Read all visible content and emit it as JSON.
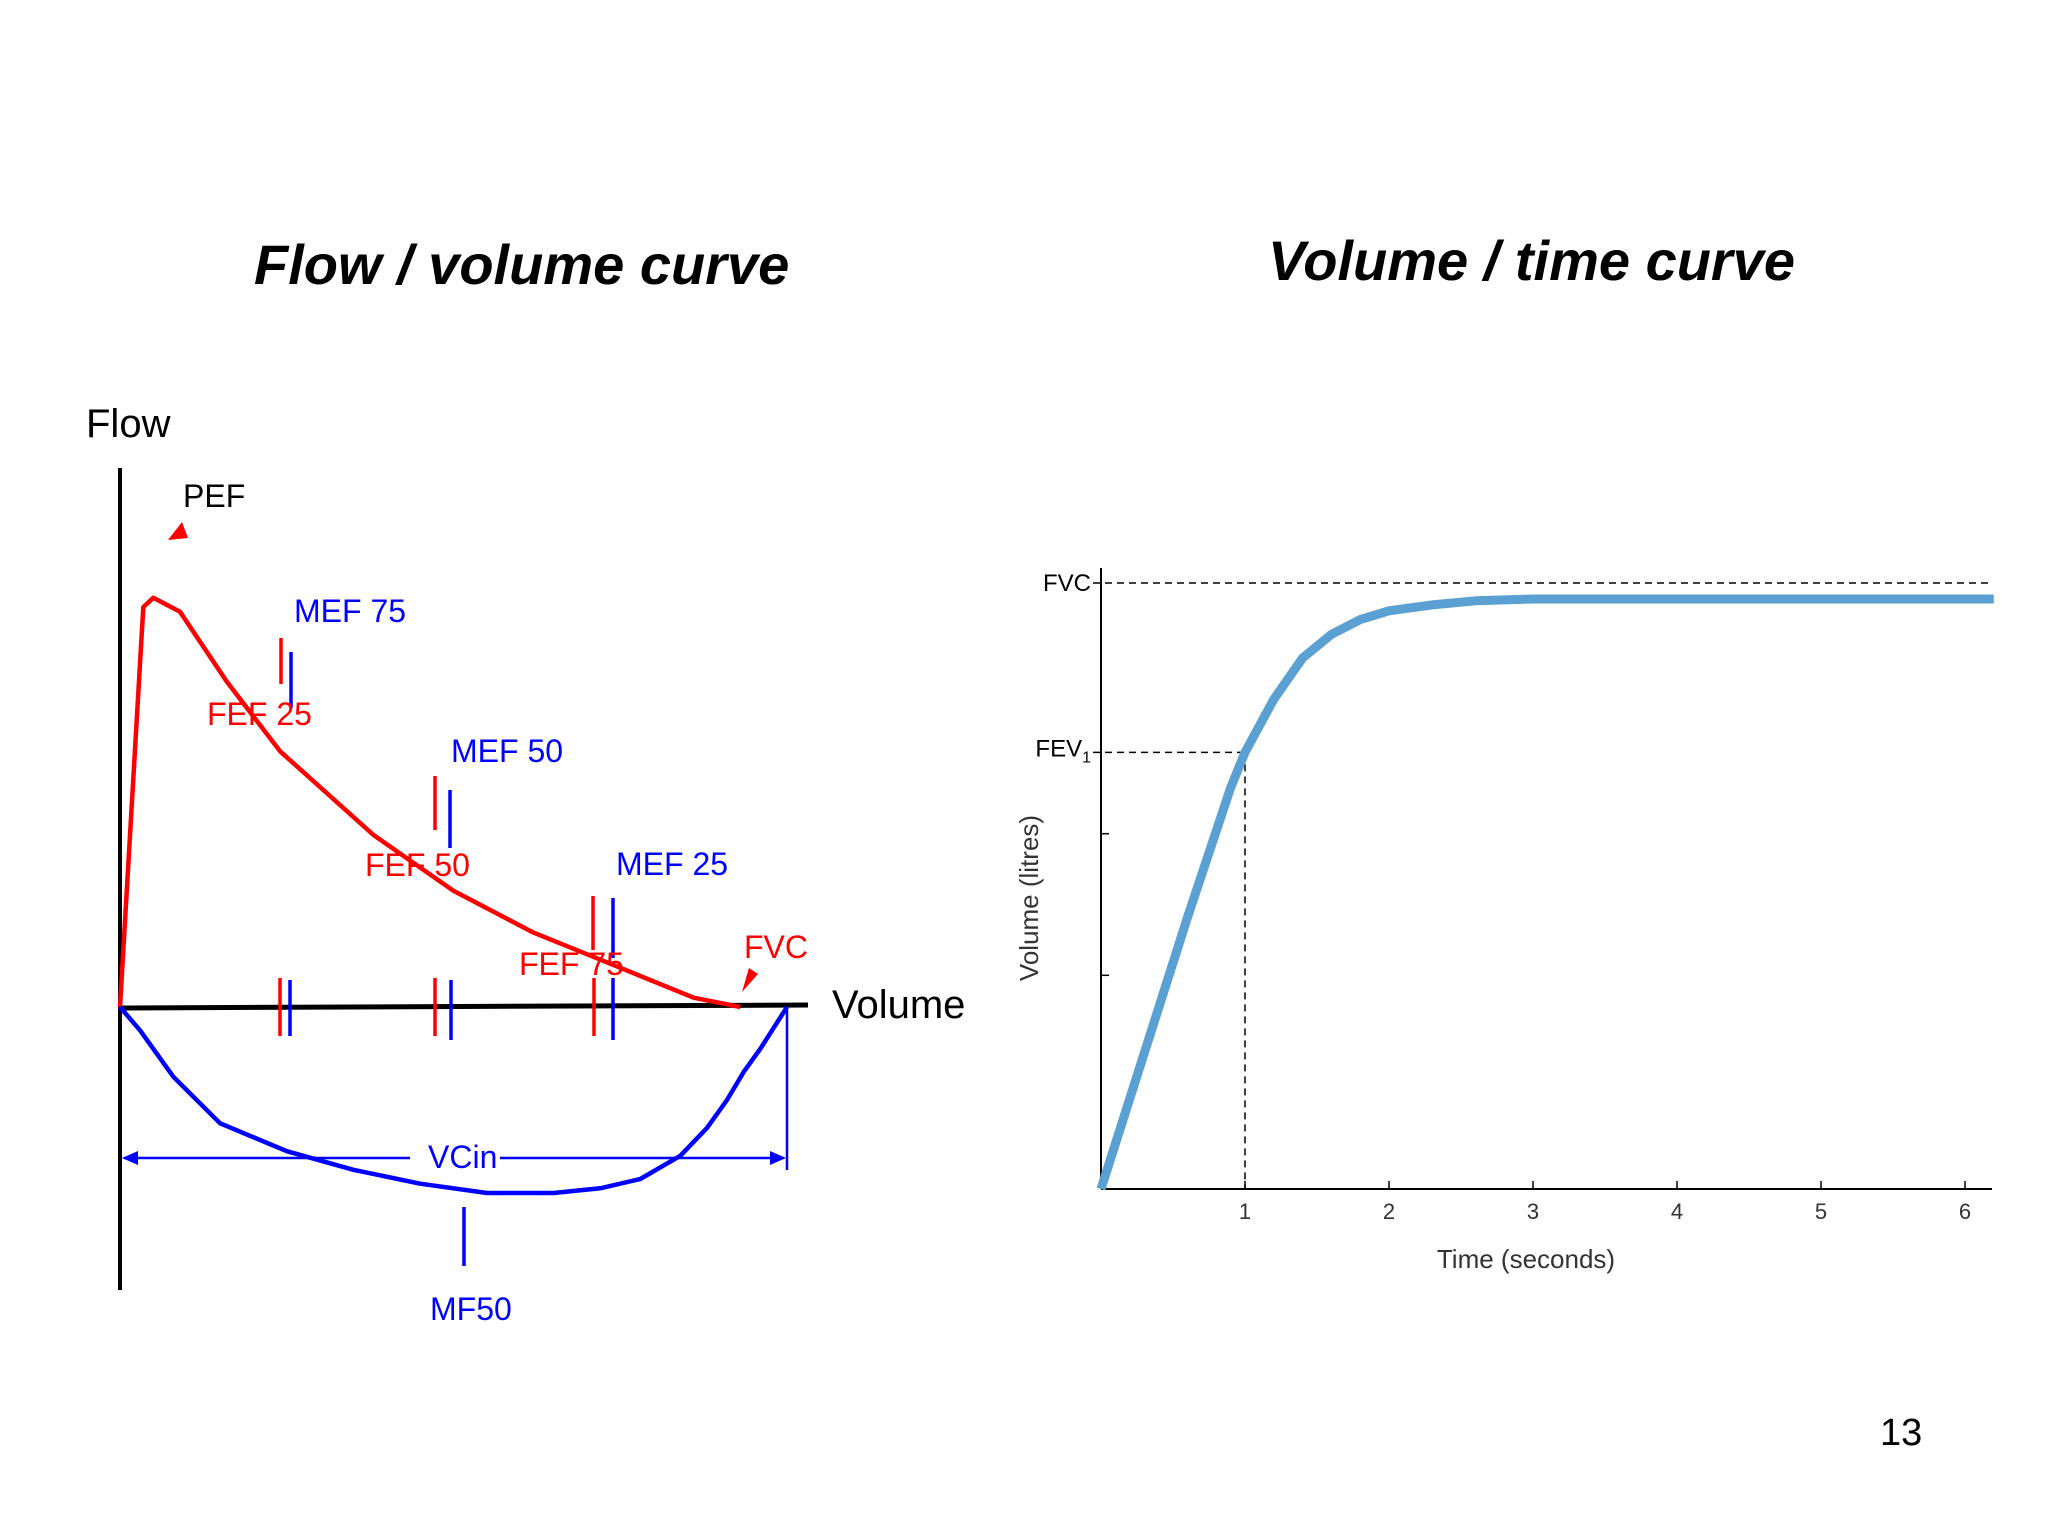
{
  "slide": {
    "left_title": "Flow / volume curve",
    "right_title": "Volume / time curve",
    "page_number": "13"
  },
  "colors": {
    "expiratory": "#ff0000",
    "inspiratory": "#0000ff",
    "volume_time_line": "#5aa0d2",
    "axis": "#000000"
  },
  "chart_data": [
    {
      "type": "line",
      "title": "Flow / volume curve",
      "xlabel": "Volume",
      "ylabel": "Flow",
      "grid": false,
      "legend": "none",
      "series": [
        {
          "name": "",
          "color": "#ff0000",
          "x": [
            0,
            0.035,
            0.05,
            0.09,
            0.16,
            0.24,
            0.38,
            0.5,
            0.62,
            0.74,
            0.86,
            0.93
          ],
          "y": [
            0,
            0.86,
            0.88,
            0.85,
            0.7,
            0.55,
            0.37,
            0.25,
            0.16,
            0.09,
            0.02,
            0
          ]
        },
        {
          "name": "",
          "color": "#0000ff",
          "x": [
            0,
            0.03,
            0.08,
            0.15,
            0.25,
            0.35,
            0.45,
            0.55,
            0.65,
            0.72,
            0.78,
            0.84,
            0.88,
            0.91,
            0.935,
            0.96,
            1.0
          ],
          "y": [
            0,
            -0.05,
            -0.15,
            -0.25,
            -0.31,
            -0.35,
            -0.38,
            -0.4,
            -0.4,
            -0.39,
            -0.37,
            -0.32,
            -0.26,
            -0.2,
            -0.14,
            -0.09,
            0
          ]
        }
      ],
      "labels": {
        "pef": "PEF",
        "mef75": "MEF 75",
        "fef25": "FEF 25",
        "mef50": "MEF 50",
        "fef50": "FEF 50",
        "mef25": "MEF 25",
        "fef75": "FEF 75",
        "fvc": "FVC",
        "vcin": "VCin",
        "mf50": "MF50"
      }
    },
    {
      "type": "line",
      "title": "Volume / time curve",
      "xlabel": "Time (seconds)",
      "ylabel": "Volume (litres)",
      "xlim": [
        0,
        6.2
      ],
      "x_ticks": [
        "1",
        "2",
        "3",
        "4",
        "5",
        "6"
      ],
      "grid": false,
      "legend": "none",
      "fvc_label": "FVC",
      "fev_label": "FEV",
      "fev_subscript": "1",
      "fev1_time": 1,
      "fvc_fraction": 1.0,
      "fev1_fraction": 0.74,
      "series": [
        {
          "name": "",
          "color": "#5aa0d2",
          "x": [
            0,
            0.3,
            0.6,
            0.9,
            1.0,
            1.2,
            1.4,
            1.6,
            1.8,
            2.0,
            2.3,
            2.6,
            3.0,
            4.0,
            5.0,
            6.2
          ],
          "y": [
            0,
            0.23,
            0.46,
            0.68,
            0.74,
            0.83,
            0.9,
            0.94,
            0.965,
            0.98,
            0.99,
            0.997,
            1.0,
            1.0,
            1.0,
            1.0
          ]
        }
      ]
    }
  ]
}
